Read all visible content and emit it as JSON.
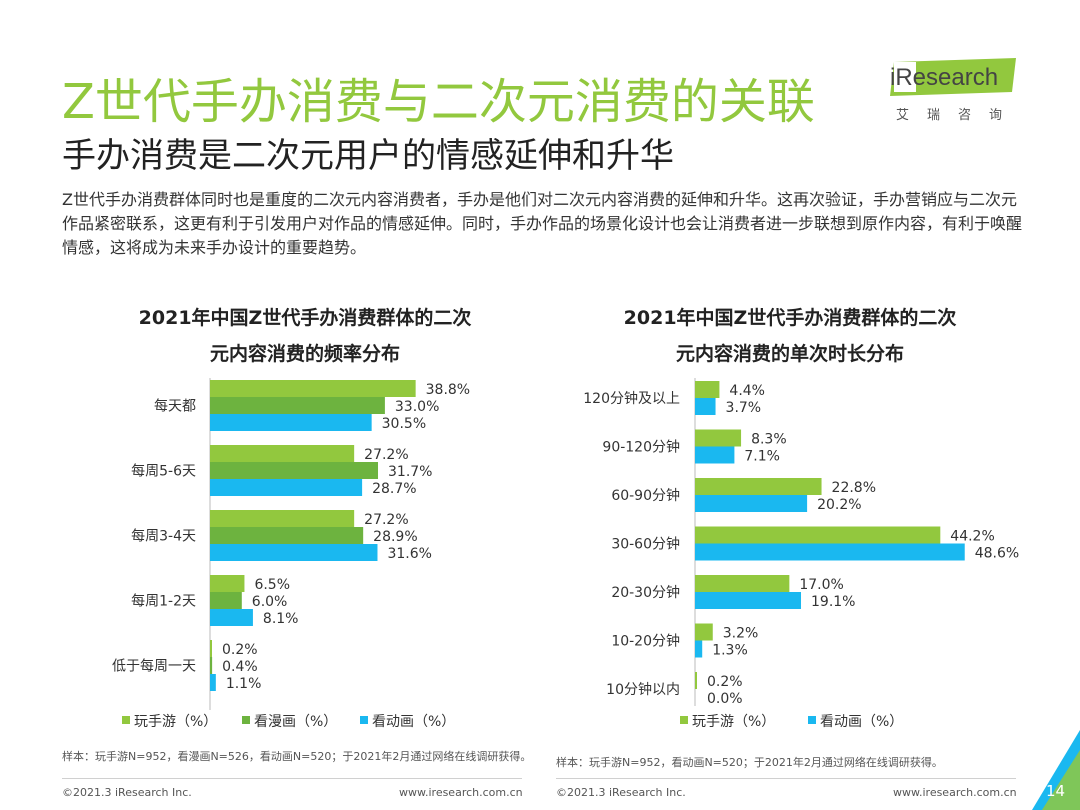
{
  "page": {
    "title": "Z世代手办消费与二次元消费的关联",
    "subtitle": "手办消费是二次元用户的情感延伸和升华",
    "intro": "Z世代手办消费群体同时也是重度的二次元内容消费者，手办是他们对二次元内容消费的延伸和升华。这再次验证，手办营销应与二次元作品紧密联系，这更有利于引发用户对作品的情感延伸。同时，手办作品的场景化设计也会让消费者进一步联想到原作内容，有利于唤醒情感，这将成为未来手办设计的重要趋势。",
    "page_number": "14"
  },
  "logo": {
    "text": "iResearch",
    "cn": "艾瑞咨询"
  },
  "colors": {
    "series1": "#92c83e",
    "series2": "#6db33f",
    "series3": "#1ab8f0",
    "accent": "#92c83e",
    "corner": "#1ab8f0"
  },
  "chart_data": [
    {
      "type": "bar",
      "orientation": "horizontal",
      "title_line1": "2021年中国Z世代手办消费群体的二次",
      "title_line2": "元内容消费的频率分布",
      "categories": [
        "每天都",
        "每周5-6天",
        "每周3-4天",
        "每周1-2天",
        "低于每周一天"
      ],
      "series": [
        {
          "name": "玩手游（%）",
          "color": "#92c83e",
          "values": [
            38.8,
            27.2,
            27.2,
            6.5,
            0.2
          ]
        },
        {
          "name": "看漫画（%）",
          "color": "#6db33f",
          "values": [
            33.0,
            31.7,
            28.9,
            6.0,
            0.4
          ]
        },
        {
          "name": "看动画（%）",
          "color": "#1ab8f0",
          "values": [
            30.5,
            28.7,
            31.6,
            8.1,
            1.1
          ]
        }
      ],
      "xlim": [
        0,
        40
      ],
      "note": "样本：玩手游N=952，看漫画N=526，看动画N=520；于2021年2月通过网络在线调研获得。"
    },
    {
      "type": "bar",
      "orientation": "horizontal",
      "title_line1": "2021年中国Z世代手办消费群体的二次",
      "title_line2": "元内容消费的单次时长分布",
      "categories": [
        "120分钟及以上",
        "90-120分钟",
        "60-90分钟",
        "30-60分钟",
        "20-30分钟",
        "10-20分钟",
        "10分钟以内"
      ],
      "series": [
        {
          "name": "玩手游（%）",
          "color": "#92c83e",
          "values": [
            4.4,
            8.3,
            22.8,
            44.2,
            17.0,
            3.2,
            0.2
          ]
        },
        {
          "name": "看动画（%）",
          "color": "#1ab8f0",
          "values": [
            3.7,
            7.1,
            20.2,
            48.6,
            19.1,
            1.3,
            0.0
          ]
        }
      ],
      "xlim": [
        0,
        50
      ],
      "note": "样本：玩手游N=952，看动画N=520；于2021年2月通过网络在线调研获得。"
    }
  ],
  "footer": {
    "copyright_left": "©2021.3 iResearch Inc.",
    "url_left": "www.iresearch.com.cn",
    "copyright_right": "©2021.3 iResearch Inc.",
    "url_right": "www.iresearch.com.cn"
  }
}
